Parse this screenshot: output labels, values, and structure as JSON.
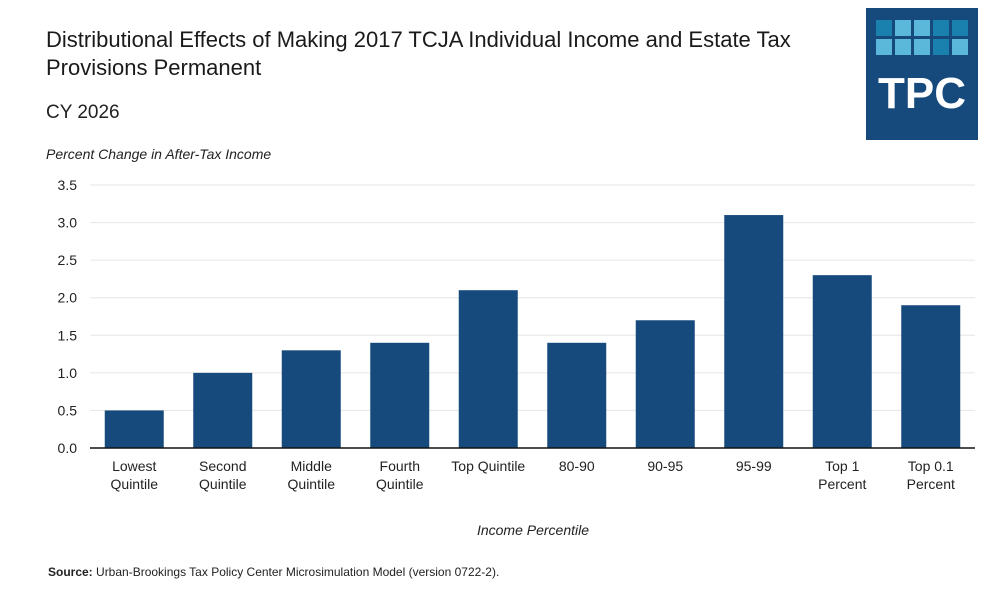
{
  "title": "Distributional Effects of Making 2017 TCJA Individual Income and Estate Tax Provisions Permanent",
  "subtitle": "CY 2026",
  "logo": {
    "text": "TPC",
    "bg": "#174a7c",
    "square_dark": "#1a80ad",
    "square_light": "#5cb8da"
  },
  "source": {
    "label": "Source:",
    "text": " Urban-Brookings Tax Policy Center Microsimulation Model (version 0722-2)."
  },
  "chart_data": {
    "type": "bar",
    "ylabel": "Percent Change in After-Tax Income",
    "xlabel": "Income Percentile",
    "categories": [
      [
        "Lowest",
        "Quintile"
      ],
      [
        "Second",
        "Quintile"
      ],
      [
        "Middle",
        "Quintile"
      ],
      [
        "Fourth",
        "Quintile"
      ],
      [
        "Top Quintile"
      ],
      [
        "80-90"
      ],
      [
        "90-95"
      ],
      [
        "95-99"
      ],
      [
        "Top 1",
        "Percent"
      ],
      [
        "Top 0.1",
        "Percent"
      ]
    ],
    "values": [
      0.5,
      1.0,
      1.3,
      1.4,
      2.1,
      1.4,
      1.7,
      3.1,
      2.3,
      1.9
    ],
    "ylim": [
      0,
      3.5
    ],
    "yticks": [
      "0.0",
      "0.5",
      "1.0",
      "1.5",
      "2.0",
      "2.5",
      "3.0",
      "3.5"
    ],
    "grid": true,
    "bar_color": "#174a7c"
  }
}
